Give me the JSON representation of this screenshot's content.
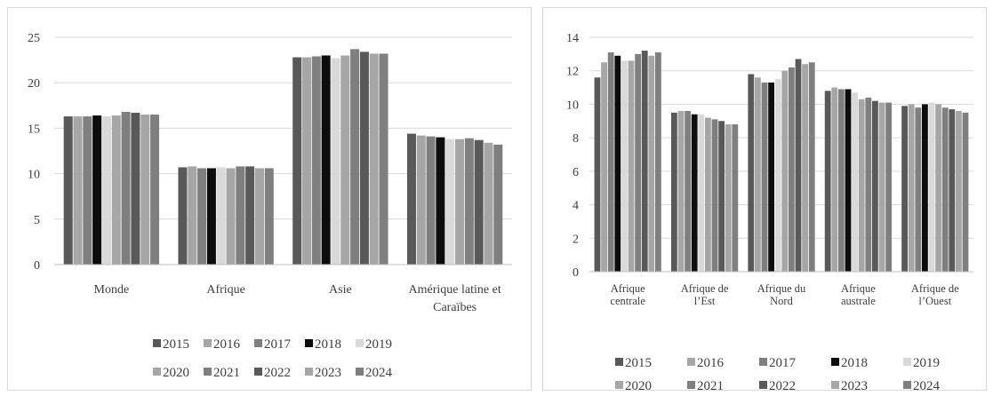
{
  "chart_data": [
    {
      "type": "bar",
      "categories": [
        [
          "Monde"
        ],
        [
          "Afrique"
        ],
        [
          "Asie"
        ],
        [
          "Amérique latine et",
          "Caraïbes"
        ]
      ],
      "ylim": [
        0,
        25
      ],
      "yticks": [
        "0",
        "5",
        "10",
        "15",
        "20",
        "25"
      ],
      "grid": true,
      "legend_position": "bottom",
      "series": [
        {
          "name": "2015",
          "color": "#595959",
          "values": [
            16.3,
            10.7,
            22.8,
            14.4
          ]
        },
        {
          "name": "2016",
          "color": "#a6a6a6",
          "values": [
            16.3,
            10.8,
            22.8,
            14.2
          ]
        },
        {
          "name": "2017",
          "color": "#7f7f7f",
          "values": [
            16.3,
            10.6,
            22.9,
            14.1
          ]
        },
        {
          "name": "2018",
          "color": "#0d0d0d",
          "values": [
            16.4,
            10.6,
            23.0,
            14.0
          ]
        },
        {
          "name": "2019",
          "color": "#d9d9d9",
          "values": [
            16.3,
            10.7,
            22.7,
            13.8
          ]
        },
        {
          "name": "2020",
          "color": "#a6a6a6",
          "values": [
            16.4,
            10.6,
            23.0,
            13.8
          ]
        },
        {
          "name": "2021",
          "color": "#7f7f7f",
          "values": [
            16.8,
            10.8,
            23.7,
            13.9
          ]
        },
        {
          "name": "2022",
          "color": "#595959",
          "values": [
            16.7,
            10.8,
            23.4,
            13.7
          ]
        },
        {
          "name": "2023",
          "color": "#a6a6a6",
          "values": [
            16.5,
            10.6,
            23.2,
            13.4
          ]
        },
        {
          "name": "2024",
          "color": "#7f7f7f",
          "values": [
            16.5,
            10.6,
            23.2,
            13.2
          ]
        }
      ]
    },
    {
      "type": "bar",
      "categories": [
        [
          "Afrique",
          "centrale"
        ],
        [
          "Afrique de",
          "l’Est"
        ],
        [
          "Afrique du",
          "Nord"
        ],
        [
          "Afrique",
          "australe"
        ],
        [
          "Afrique de",
          "l’Ouest"
        ]
      ],
      "ylim": [
        0,
        14
      ],
      "yticks": [
        "0",
        "2",
        "4",
        "6",
        "8",
        "10",
        "12",
        "14"
      ],
      "grid": true,
      "legend_position": "bottom",
      "series": [
        {
          "name": "2015",
          "color": "#595959",
          "values": [
            11.6,
            9.5,
            11.8,
            10.8,
            9.9
          ]
        },
        {
          "name": "2016",
          "color": "#a6a6a6",
          "values": [
            12.5,
            9.6,
            11.6,
            11.0,
            10.0
          ]
        },
        {
          "name": "2017",
          "color": "#7f7f7f",
          "values": [
            13.1,
            9.6,
            11.3,
            10.9,
            9.8
          ]
        },
        {
          "name": "2018",
          "color": "#0d0d0d",
          "values": [
            12.9,
            9.4,
            11.3,
            10.9,
            10.0
          ]
        },
        {
          "name": "2019",
          "color": "#d9d9d9",
          "values": [
            12.6,
            9.4,
            11.5,
            10.7,
            10.1
          ]
        },
        {
          "name": "2020",
          "color": "#a6a6a6",
          "values": [
            12.6,
            9.2,
            12.0,
            10.3,
            10.0
          ]
        },
        {
          "name": "2021",
          "color": "#7f7f7f",
          "values": [
            13.0,
            9.1,
            12.2,
            10.4,
            9.8
          ]
        },
        {
          "name": "2022",
          "color": "#595959",
          "values": [
            13.2,
            9.0,
            12.7,
            10.2,
            9.7
          ]
        },
        {
          "name": "2023",
          "color": "#a6a6a6",
          "values": [
            12.9,
            8.8,
            12.4,
            10.1,
            9.6
          ]
        },
        {
          "name": "2024",
          "color": "#7f7f7f",
          "values": [
            13.1,
            8.8,
            12.5,
            10.1,
            9.5
          ]
        }
      ]
    }
  ]
}
